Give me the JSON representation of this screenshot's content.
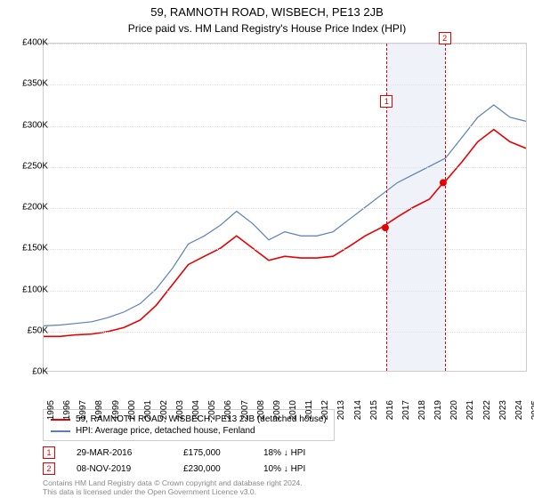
{
  "title": "59, RAMNOTH ROAD, WISBECH, PE13 2JB",
  "subtitle": "Price paid vs. HM Land Registry's House Price Index (HPI)",
  "chart": {
    "type": "line",
    "background_color": "#ffffff",
    "grid_color": "#e0e0e0",
    "border_color": "#cccccc",
    "ylim": [
      0,
      400000
    ],
    "ytick_step": 50000,
    "y_labels": [
      "£0K",
      "£50K",
      "£100K",
      "£150K",
      "£200K",
      "£250K",
      "£300K",
      "£350K",
      "£400K"
    ],
    "x_years": [
      "1995",
      "1996",
      "1997",
      "1998",
      "1999",
      "2000",
      "2001",
      "2002",
      "2003",
      "2004",
      "2005",
      "2006",
      "2007",
      "2008",
      "2009",
      "2010",
      "2011",
      "2012",
      "2013",
      "2014",
      "2015",
      "2016",
      "2017",
      "2018",
      "2019",
      "2020",
      "2021",
      "2022",
      "2023",
      "2024",
      "2025"
    ],
    "title_fontsize": 13,
    "label_fontsize": 10,
    "highlight_band": {
      "start_year": 2016.25,
      "end_year": 2019.85,
      "color": "#e8edf5"
    },
    "dash_lines": [
      2016.25,
      2019.85
    ],
    "series": [
      {
        "name": "HPI: Average price, detached house, Fenland",
        "color": "#5a7fb8",
        "line_width": 1.2,
        "data": [
          [
            1995,
            55000
          ],
          [
            1996,
            56000
          ],
          [
            1997,
            58000
          ],
          [
            1998,
            60000
          ],
          [
            1999,
            65000
          ],
          [
            2000,
            72000
          ],
          [
            2001,
            82000
          ],
          [
            2002,
            100000
          ],
          [
            2003,
            125000
          ],
          [
            2004,
            155000
          ],
          [
            2005,
            165000
          ],
          [
            2006,
            178000
          ],
          [
            2007,
            195000
          ],
          [
            2008,
            180000
          ],
          [
            2009,
            160000
          ],
          [
            2010,
            170000
          ],
          [
            2011,
            165000
          ],
          [
            2012,
            165000
          ],
          [
            2013,
            170000
          ],
          [
            2014,
            185000
          ],
          [
            2015,
            200000
          ],
          [
            2016,
            215000
          ],
          [
            2017,
            230000
          ],
          [
            2018,
            240000
          ],
          [
            2019,
            250000
          ],
          [
            2020,
            260000
          ],
          [
            2021,
            285000
          ],
          [
            2022,
            310000
          ],
          [
            2023,
            325000
          ],
          [
            2024,
            310000
          ],
          [
            2025,
            305000
          ]
        ]
      },
      {
        "name": "59, RAMNOTH ROAD, WISBECH, PE13 2JB (detached house)",
        "color": "#e60000",
        "line_width": 1.6,
        "data": [
          [
            1995,
            42000
          ],
          [
            1996,
            42000
          ],
          [
            1997,
            44000
          ],
          [
            1998,
            45000
          ],
          [
            1999,
            48000
          ],
          [
            2000,
            53000
          ],
          [
            2001,
            62000
          ],
          [
            2002,
            80000
          ],
          [
            2003,
            105000
          ],
          [
            2004,
            130000
          ],
          [
            2005,
            140000
          ],
          [
            2006,
            150000
          ],
          [
            2007,
            165000
          ],
          [
            2008,
            150000
          ],
          [
            2009,
            135000
          ],
          [
            2010,
            140000
          ],
          [
            2011,
            138000
          ],
          [
            2012,
            138000
          ],
          [
            2013,
            140000
          ],
          [
            2014,
            152000
          ],
          [
            2015,
            165000
          ],
          [
            2016,
            175000
          ],
          [
            2017,
            188000
          ],
          [
            2018,
            200000
          ],
          [
            2019,
            210000
          ],
          [
            2019.85,
            230000
          ],
          [
            2020,
            232000
          ],
          [
            2021,
            255000
          ],
          [
            2022,
            280000
          ],
          [
            2023,
            295000
          ],
          [
            2024,
            280000
          ],
          [
            2025,
            272000
          ]
        ]
      }
    ],
    "markers": [
      {
        "label": "1",
        "year": 2016.25,
        "price": 175000,
        "color": "#e60000",
        "dot": true,
        "box_offset_y": -150
      },
      {
        "label": "2",
        "year": 2019.85,
        "price": 230000,
        "color": "#e60000",
        "dot": true,
        "box_offset_y": -170
      }
    ]
  },
  "legend": {
    "items": [
      {
        "color": "#e60000",
        "label": "59, RAMNOTH ROAD, WISBECH, PE13 2JB (detached house)"
      },
      {
        "color": "#5a7fb8",
        "label": "HPI: Average price, detached house, Fenland"
      }
    ]
  },
  "table": {
    "rows": [
      {
        "marker": "1",
        "date": "29-MAR-2016",
        "price": "£175,000",
        "pct": "18% ↓ HPI"
      },
      {
        "marker": "2",
        "date": "08-NOV-2019",
        "price": "£230,000",
        "pct": "10% ↓ HPI"
      }
    ]
  },
  "footer": {
    "line1": "Contains HM Land Registry data © Crown copyright and database right 2024.",
    "line2": "This data is licensed under the Open Government Licence v3.0."
  }
}
